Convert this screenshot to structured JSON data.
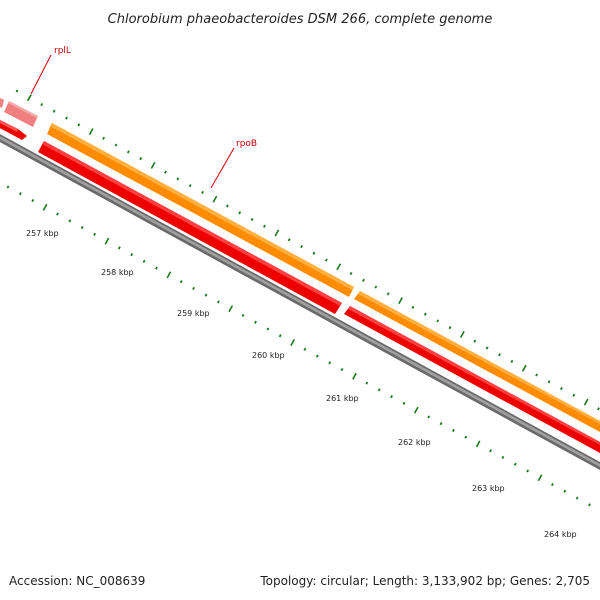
{
  "title": "Chlorobium phaeobacteroides DSM 266, complete genome",
  "accession_text": "Accession: NC_008639",
  "summary_text": "Topology: circular; Length: 3,133,902 bp; Genes: 2,705",
  "genes": [
    {
      "name": "rplL",
      "color": "#dd0000"
    },
    {
      "name": "rpoB",
      "color": "#dd0000"
    }
  ],
  "kbp_labels": [
    "257 kbp",
    "258 kbp",
    "259 kbp",
    "260 kbp",
    "261 kbp",
    "262 kbp",
    "263 kbp",
    "264 kbp"
  ],
  "colors": {
    "backbone": "#808080",
    "cds_forward": "#ff8c00",
    "cds_reverse": "#ee0000",
    "cds_light": "#f08080",
    "tick": "#1a7a1a",
    "label_line": "#dd0000"
  }
}
